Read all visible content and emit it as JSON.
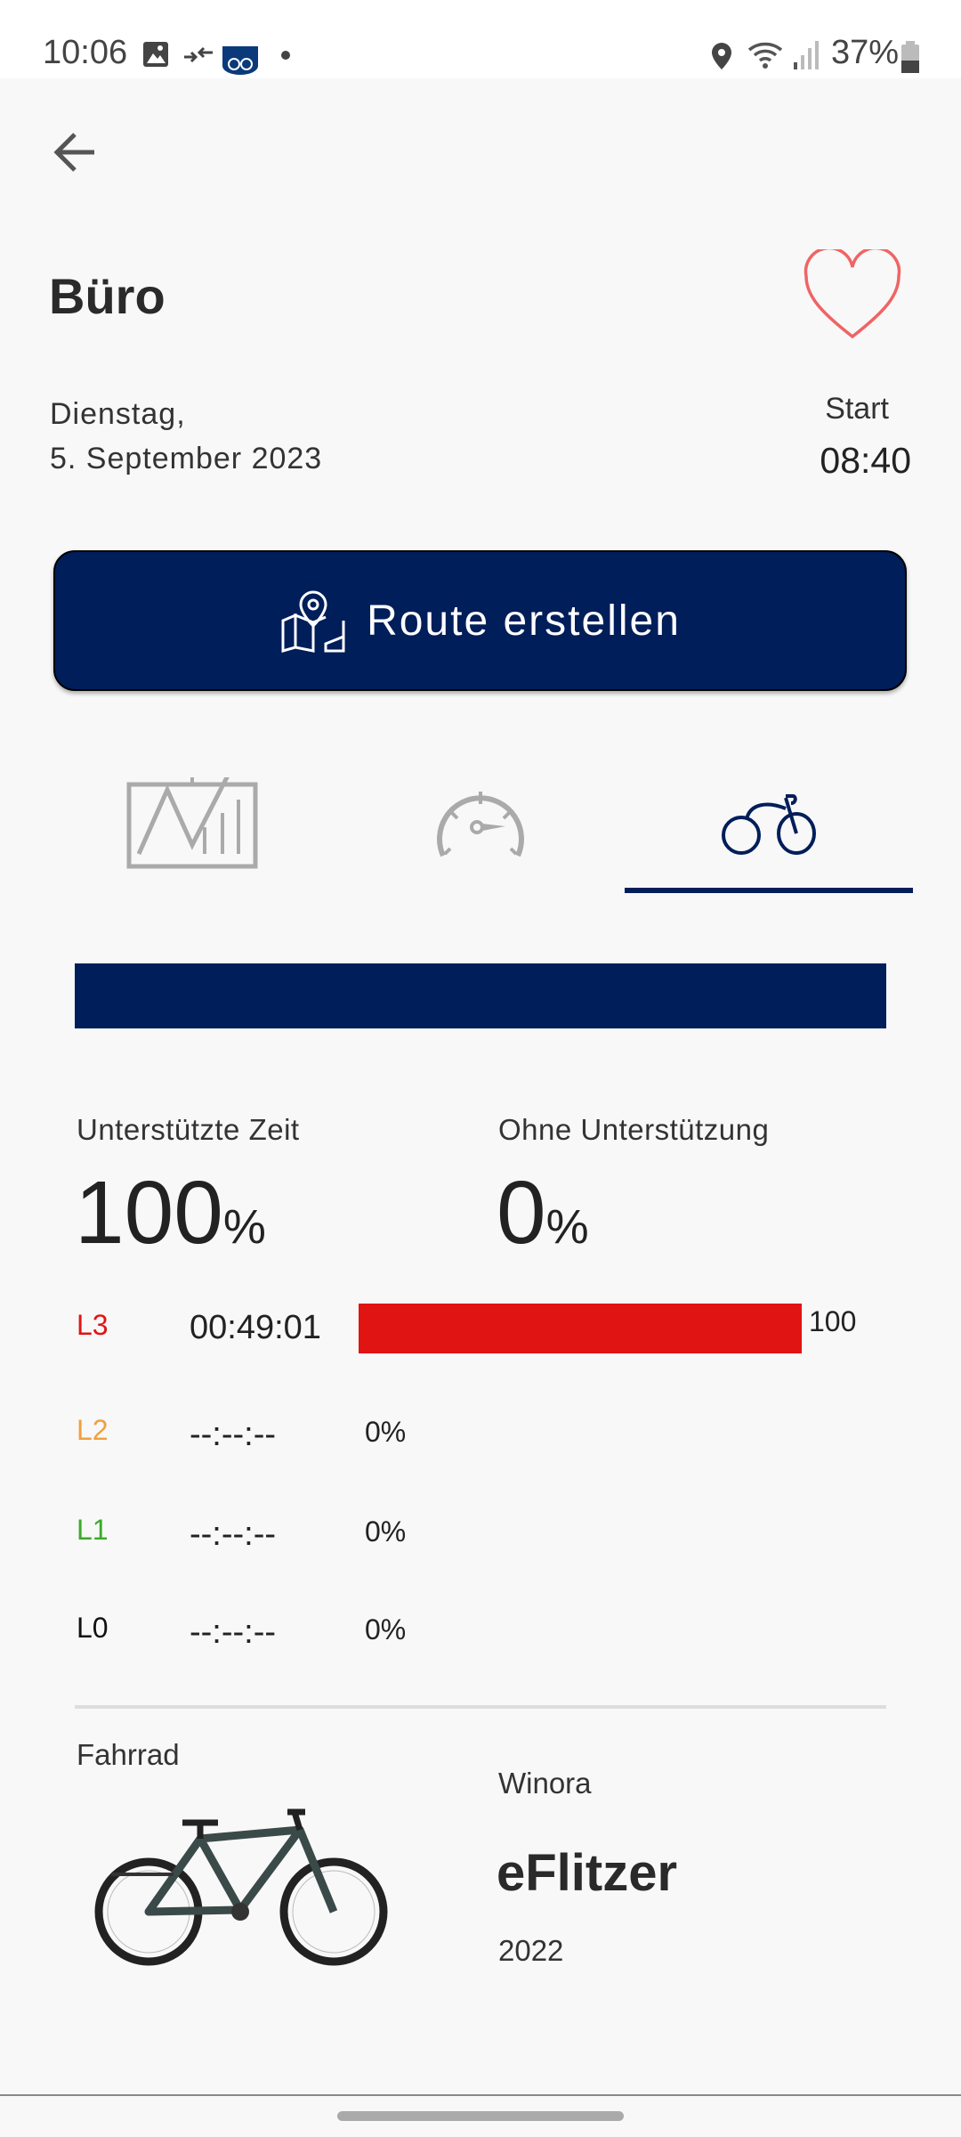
{
  "status_bar": {
    "time": "10:06",
    "battery": "37%"
  },
  "header": {
    "title": "Büro",
    "favorite": false,
    "weekday": "Dienstag,",
    "date": "5. September 2023",
    "start_label": "Start",
    "start_time": "08:40"
  },
  "route_button": {
    "label": "Route erstellen"
  },
  "tabs": [
    {
      "icon": "chart-icon",
      "active": false
    },
    {
      "icon": "speedometer-icon",
      "active": false
    },
    {
      "icon": "bicycle-icon",
      "active": true
    }
  ],
  "assist": {
    "supported_label": "Unterstützte Zeit",
    "supported_value": "100",
    "unsupported_label": "Ohne Unterstützung",
    "unsupported_value": "0",
    "percent_sign": "%",
    "levels": [
      {
        "name": "L3",
        "color": "#e11414",
        "time": "00:49:01",
        "percent": "100",
        "fraction": 1.0
      },
      {
        "name": "L2",
        "color": "#f0a040",
        "time": "--:--:--",
        "percent": "0%"
      },
      {
        "name": "L1",
        "color": "#3aaa2a",
        "time": "--:--:--",
        "percent": "0%"
      },
      {
        "name": "L0",
        "color": "#111111",
        "time": "--:--:--",
        "percent": "0%"
      }
    ]
  },
  "bike": {
    "section_label": "Fahrrad",
    "brand": "Winora",
    "model": "eFlitzer",
    "year": "2022"
  },
  "colors": {
    "brand": "#001e5a",
    "background": "#f8f8f8"
  }
}
